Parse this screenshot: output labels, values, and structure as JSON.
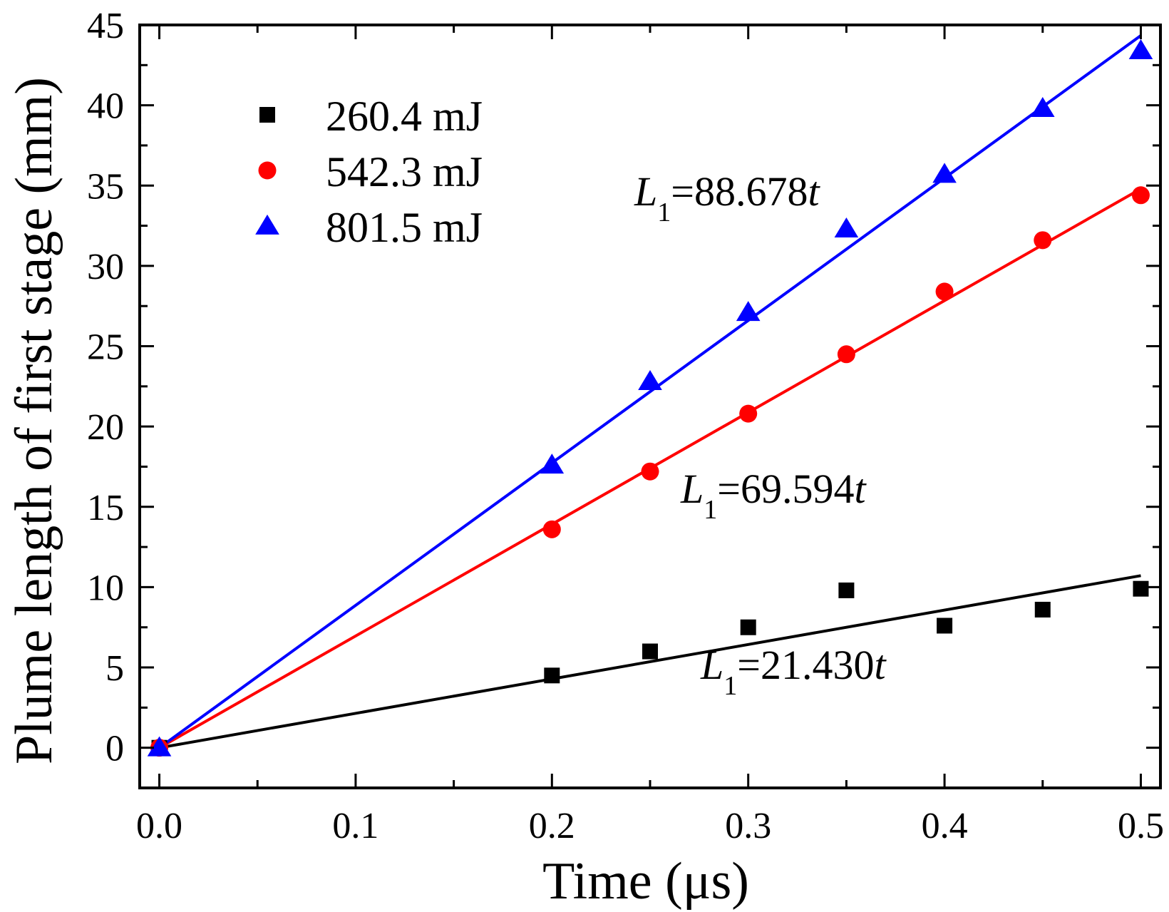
{
  "chart_data": {
    "type": "scatter",
    "xlabel": "Time (μs)",
    "ylabel": "Plume length of first stage (mm)",
    "xlim": [
      -0.01,
      0.51
    ],
    "ylim": [
      -2.5,
      45
    ],
    "x_ticks": [
      0.0,
      0.1,
      0.2,
      0.3,
      0.4,
      0.5
    ],
    "x_tick_labels": [
      "0.0",
      "0.1",
      "0.2",
      "0.3",
      "0.4",
      "0.5"
    ],
    "y_ticks": [
      0,
      5,
      10,
      15,
      20,
      25,
      30,
      35,
      40,
      45
    ],
    "y_tick_labels": [
      "0",
      "5",
      "10",
      "15",
      "20",
      "25",
      "30",
      "35",
      "40",
      "45"
    ],
    "grid": false,
    "legend_position": "top-left",
    "series": [
      {
        "name": "260.4 mJ",
        "marker": "square",
        "color": "#000000",
        "x": [
          0.0,
          0.2,
          0.25,
          0.3,
          0.35,
          0.4,
          0.45,
          0.5
        ],
        "y": [
          0.0,
          4.5,
          6.0,
          7.5,
          9.8,
          7.6,
          8.6,
          9.9
        ],
        "fit": {
          "slope": 21.43,
          "label": "L",
          "sub": "1",
          "rhs": "=21.430",
          "var": "t"
        }
      },
      {
        "name": "542.3 mJ",
        "marker": "circle",
        "color": "#ff0000",
        "x": [
          0.0,
          0.2,
          0.25,
          0.3,
          0.35,
          0.4,
          0.45,
          0.5
        ],
        "y": [
          0.0,
          13.6,
          17.2,
          20.8,
          24.5,
          28.4,
          31.6,
          34.4
        ],
        "fit": {
          "slope": 69.594,
          "label": "L",
          "sub": "1",
          "rhs": "=69.594",
          "var": "t"
        }
      },
      {
        "name": "801.5 mJ",
        "marker": "triangle",
        "color": "#0000ff",
        "x": [
          0.0,
          0.2,
          0.25,
          0.3,
          0.35,
          0.4,
          0.45,
          0.5
        ],
        "y": [
          0.0,
          17.6,
          22.8,
          27.1,
          32.3,
          35.7,
          39.8,
          43.4
        ],
        "fit": {
          "slope": 88.678,
          "label": "L",
          "sub": "1",
          "rhs": "=88.678",
          "var": "t"
        }
      }
    ]
  }
}
